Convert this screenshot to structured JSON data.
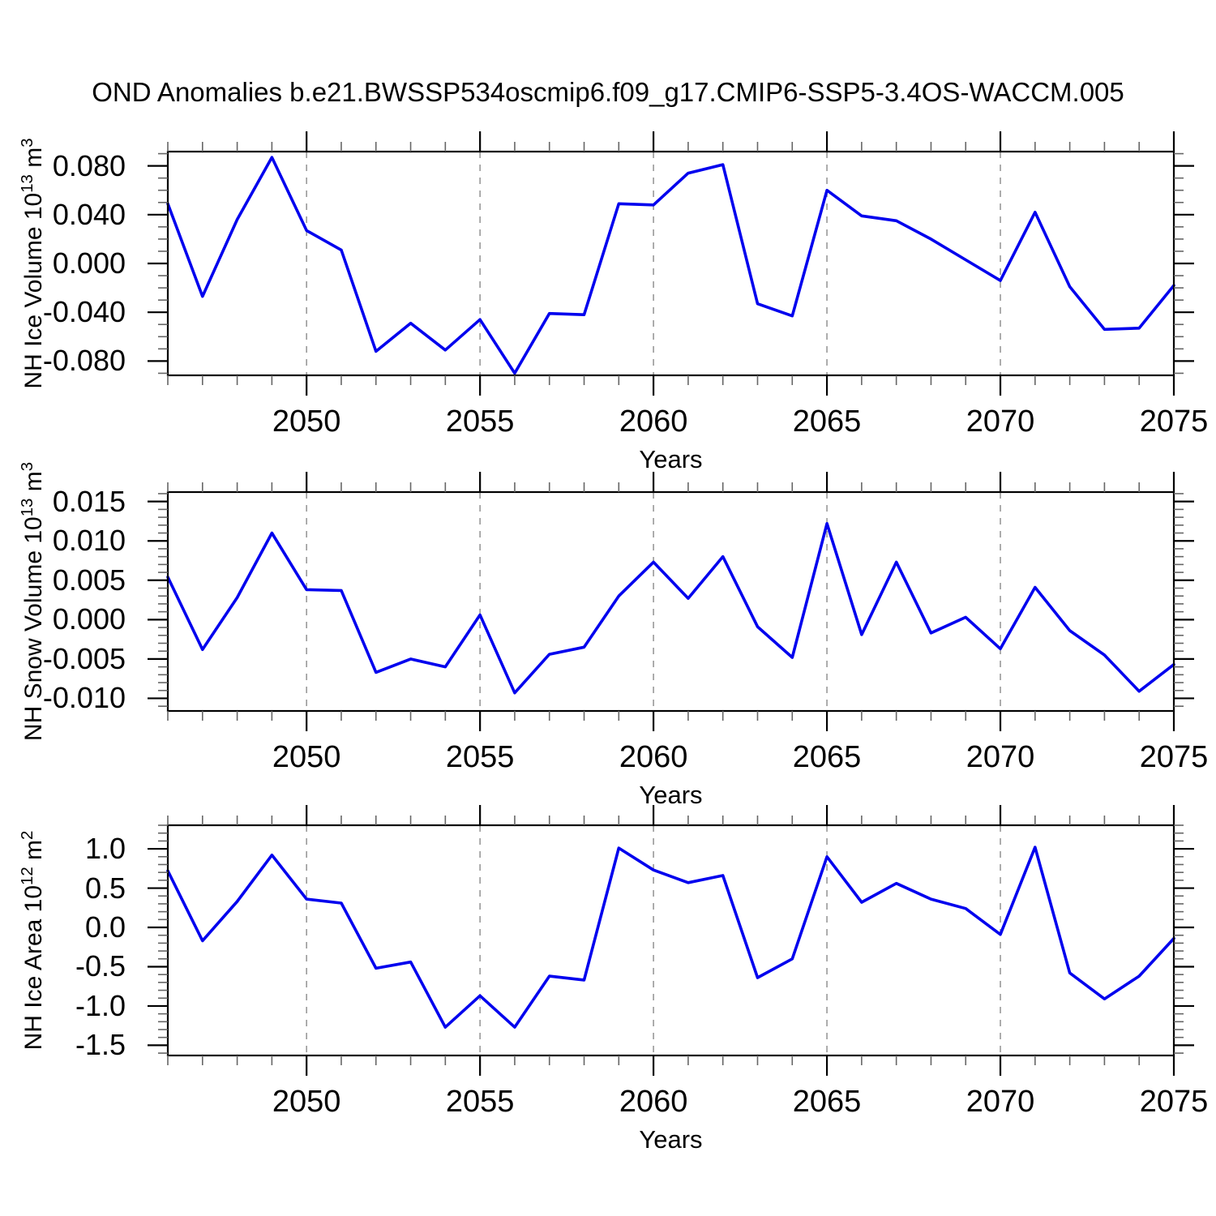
{
  "title": "OND Anomalies b.e21.BWSSP534oscmip6.f09_g17.CMIP6-SSP5-3.4OS-WACCM.005",
  "colors": {
    "line": "#0000ee",
    "axis": "#000000",
    "minor_tick": "#666666",
    "gridline": "#999999",
    "background": "#ffffff"
  },
  "chart_data": [
    {
      "type": "line",
      "name": "NH Ice Volume Anomaly",
      "ylabel": "NH Ice Volume 10^13 m^3",
      "ylabel_parts": [
        {
          "t": "NH Ice Volume 10"
        },
        {
          "sup": "13"
        },
        {
          "t": " m"
        },
        {
          "sup": "3"
        }
      ],
      "xlabel": "Years",
      "x": [
        2046,
        2047,
        2048,
        2049,
        2050,
        2051,
        2052,
        2053,
        2054,
        2055,
        2056,
        2057,
        2058,
        2059,
        2060,
        2061,
        2062,
        2063,
        2064,
        2065,
        2066,
        2067,
        2068,
        2069,
        2070,
        2071,
        2072,
        2073,
        2074,
        2075
      ],
      "values": [
        0.049,
        -0.027,
        0.036,
        0.087,
        0.027,
        0.011,
        -0.072,
        -0.049,
        -0.071,
        -0.046,
        -0.09,
        -0.041,
        -0.042,
        0.049,
        0.048,
        0.074,
        0.081,
        -0.033,
        -0.043,
        0.06,
        0.039,
        0.035,
        0.02,
        0.003,
        -0.014,
        0.042,
        -0.019,
        -0.054,
        -0.053,
        -0.018
      ],
      "xlim": [
        2046,
        2075
      ],
      "ylim": [
        -0.0917,
        0.0917
      ],
      "xticks": {
        "values": [
          2050,
          2055,
          2060,
          2065,
          2070,
          2075
        ],
        "labels": [
          "2050",
          "2055",
          "2060",
          "2065",
          "2070",
          "2075"
        ],
        "minor_step": 1
      },
      "yticks": {
        "values": [
          0.08,
          0.04,
          0.0,
          -0.04,
          -0.08
        ],
        "labels": [
          "0.080",
          "0.040",
          "0.000",
          "-0.040",
          "-0.080"
        ],
        "minor_step": 0.01
      },
      "grid": "vertical-dashed-at-major-xticks",
      "legend": "none"
    },
    {
      "type": "line",
      "name": "NH Snow Volume Anomaly",
      "ylabel": "NH Snow Volume 10^13 m^3",
      "ylabel_parts": [
        {
          "t": "NH Snow Volume 10"
        },
        {
          "sup": "13"
        },
        {
          "t": " m"
        },
        {
          "sup": "3"
        }
      ],
      "xlabel": "Years",
      "x": [
        2046,
        2047,
        2048,
        2049,
        2050,
        2051,
        2052,
        2053,
        2054,
        2055,
        2056,
        2057,
        2058,
        2059,
        2060,
        2061,
        2062,
        2063,
        2064,
        2065,
        2066,
        2067,
        2068,
        2069,
        2070,
        2071,
        2072,
        2073,
        2074,
        2075
      ],
      "values": [
        0.0054,
        -0.0038,
        0.0028,
        0.011,
        0.0038,
        0.0037,
        -0.0067,
        -0.005,
        -0.006,
        0.0006,
        -0.0093,
        -0.0044,
        -0.0035,
        0.003,
        0.0073,
        0.0027,
        0.008,
        -0.0009,
        -0.0048,
        0.0122,
        -0.0019,
        0.0073,
        -0.0017,
        0.0003,
        -0.0037,
        0.0041,
        -0.0014,
        -0.0045,
        -0.0091,
        -0.0057
      ],
      "xlim": [
        2046,
        2075
      ],
      "ylim": [
        -0.0116,
        0.0162
      ],
      "xticks": {
        "values": [
          2050,
          2055,
          2060,
          2065,
          2070,
          2075
        ],
        "labels": [
          "2050",
          "2055",
          "2060",
          "2065",
          "2070",
          "2075"
        ],
        "minor_step": 1
      },
      "yticks": {
        "values": [
          0.015,
          0.01,
          0.005,
          0.0,
          -0.005,
          -0.01
        ],
        "labels": [
          "0.015",
          "0.010",
          "0.005",
          "0.000",
          "-0.005",
          "-0.010"
        ],
        "minor_step": 0.001
      },
      "grid": "vertical-dashed-at-major-xticks",
      "legend": "none"
    },
    {
      "type": "line",
      "name": "NH Ice Area Anomaly",
      "ylabel": "NH Ice Area 10^12 m^2",
      "ylabel_parts": [
        {
          "t": "NH Ice Area 10"
        },
        {
          "sup": "12"
        },
        {
          "t": " m"
        },
        {
          "sup": "2"
        }
      ],
      "xlabel": "Years",
      "x": [
        2046,
        2047,
        2048,
        2049,
        2050,
        2051,
        2052,
        2053,
        2054,
        2055,
        2056,
        2057,
        2058,
        2059,
        2060,
        2061,
        2062,
        2063,
        2064,
        2065,
        2066,
        2067,
        2068,
        2069,
        2070,
        2071,
        2072,
        2073,
        2074,
        2075
      ],
      "values": [
        0.72,
        -0.17,
        0.33,
        0.92,
        0.36,
        0.31,
        -0.52,
        -0.44,
        -1.27,
        -0.87,
        -1.27,
        -0.62,
        -0.67,
        1.01,
        0.73,
        0.57,
        0.66,
        -0.64,
        -0.4,
        0.9,
        0.32,
        0.56,
        0.36,
        0.24,
        -0.09,
        1.02,
        -0.58,
        -0.91,
        -0.62,
        -0.14
      ],
      "xlim": [
        2046,
        2075
      ],
      "ylim": [
        -1.63,
        1.3
      ],
      "xticks": {
        "values": [
          2050,
          2055,
          2060,
          2065,
          2070,
          2075
        ],
        "labels": [
          "2050",
          "2055",
          "2060",
          "2065",
          "2070",
          "2075"
        ],
        "minor_step": 1
      },
      "yticks": {
        "values": [
          1.0,
          0.5,
          0.0,
          -0.5,
          -1.0,
          -1.5
        ],
        "labels": [
          "1.0",
          "0.5",
          "0.0",
          "-0.5",
          "-1.0",
          "-1.5"
        ],
        "minor_step": 0.1
      },
      "grid": "vertical-dashed-at-major-xticks",
      "legend": "none"
    }
  ]
}
